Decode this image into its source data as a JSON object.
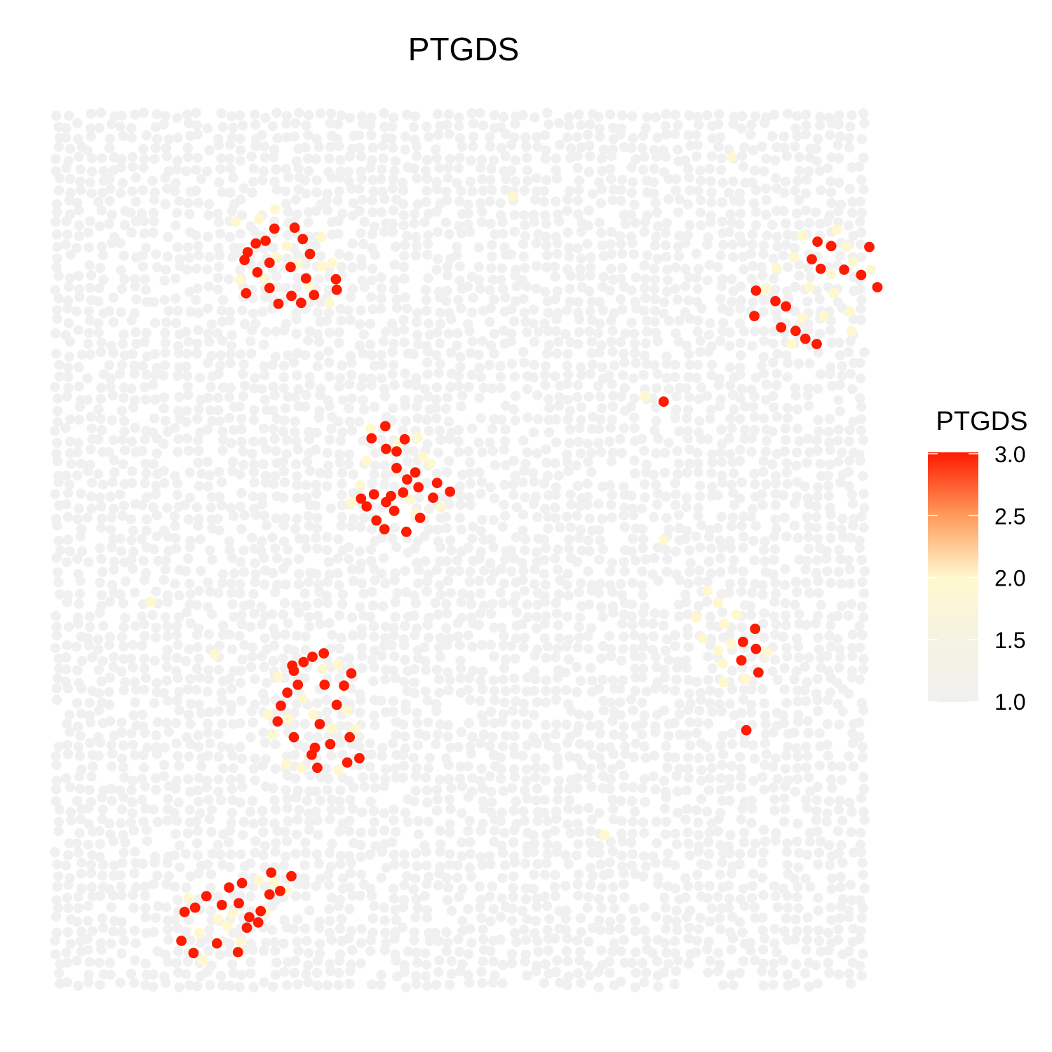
{
  "chart_data": {
    "type": "scatter",
    "title": "PTGDS",
    "xlabel": "",
    "ylabel": "",
    "axes_visible": false,
    "grid": false,
    "background_point_color": "#f0f0f0",
    "legend": {
      "title": "PTGDS",
      "position": "right",
      "type": "colorbar",
      "ticks": [
        "3.0",
        "2.5",
        "2.0",
        "1.5",
        "1.0"
      ],
      "range": [
        1.0,
        3.0
      ],
      "colors": [
        "#f0f0f0",
        "#fff8cf",
        "#ffefb0",
        "#ff9a5a",
        "#ff1a00"
      ]
    },
    "xlim": [
      0,
      100
    ],
    "ylim": [
      0,
      100
    ],
    "clusters": [
      {
        "highlighted": [
          {
            "x": 27.3,
            "y": 78.4,
            "v": 3
          },
          {
            "x": 28.9,
            "y": 79.3,
            "v": 3
          },
          {
            "x": 30.1,
            "y": 78.5,
            "v": 3
          },
          {
            "x": 31.7,
            "y": 79.4,
            "v": 3
          },
          {
            "x": 34.4,
            "y": 81.2,
            "v": 3
          },
          {
            "x": 30.7,
            "y": 81.3,
            "v": 3
          },
          {
            "x": 28.8,
            "y": 82.6,
            "v": 3
          },
          {
            "x": 34.5,
            "y": 80.0,
            "v": 3
          },
          {
            "x": 31.2,
            "y": 84.1,
            "v": 3
          },
          {
            "x": 24.7,
            "y": 82.0,
            "v": 3
          },
          {
            "x": 23.1,
            "y": 83.4,
            "v": 3
          },
          {
            "x": 26.2,
            "y": 83.1,
            "v": 3
          },
          {
            "x": 30.3,
            "y": 85.8,
            "v": 3
          },
          {
            "x": 23.5,
            "y": 84.3,
            "v": 3
          },
          {
            "x": 24.5,
            "y": 85.3,
            "v": 3
          },
          {
            "x": 26.8,
            "y": 87.0,
            "v": 3
          },
          {
            "x": 29.3,
            "y": 87.1,
            "v": 3
          },
          {
            "x": 25.7,
            "y": 85.6,
            "v": 3
          },
          {
            "x": 23.3,
            "y": 79.6,
            "v": 3
          },
          {
            "x": 26.2,
            "y": 80.2,
            "v": 3
          },
          {
            "x": 28.3,
            "y": 85.0,
            "v": 2
          },
          {
            "x": 27.0,
            "y": 83.7,
            "v": 2
          },
          {
            "x": 25.6,
            "y": 81.2,
            "v": 2
          },
          {
            "x": 29.7,
            "y": 83.0,
            "v": 2
          },
          {
            "x": 32.7,
            "y": 82.7,
            "v": 2
          },
          {
            "x": 32.6,
            "y": 86.0,
            "v": 2
          },
          {
            "x": 24.9,
            "y": 88.1,
            "v": 2
          },
          {
            "x": 33.6,
            "y": 78.5,
            "v": 2
          },
          {
            "x": 22.5,
            "y": 81.1,
            "v": 2
          },
          {
            "x": 33.9,
            "y": 83.1,
            "v": 2
          },
          {
            "x": 31.1,
            "y": 80.5,
            "v": 2
          },
          {
            "x": 22.0,
            "y": 87.8,
            "v": 2
          }
        ]
      },
      {
        "highlighted": [
          {
            "x": 43.1,
            "y": 52.3,
            "v": 3
          },
          {
            "x": 44.8,
            "y": 53.9,
            "v": 3
          },
          {
            "x": 41.6,
            "y": 54.7,
            "v": 3
          },
          {
            "x": 40.6,
            "y": 55.7,
            "v": 3
          },
          {
            "x": 41.2,
            "y": 56.4,
            "v": 3
          },
          {
            "x": 42.7,
            "y": 56.8,
            "v": 3
          },
          {
            "x": 39.4,
            "y": 53.6,
            "v": 3
          },
          {
            "x": 38.2,
            "y": 55.2,
            "v": 3
          },
          {
            "x": 46.4,
            "y": 56.2,
            "v": 3
          },
          {
            "x": 48.5,
            "y": 56.9,
            "v": 3
          },
          {
            "x": 46.9,
            "y": 57.9,
            "v": 3
          },
          {
            "x": 44.2,
            "y": 59.1,
            "v": 3
          },
          {
            "x": 41.9,
            "y": 61.5,
            "v": 3
          },
          {
            "x": 40.6,
            "y": 61.8,
            "v": 3
          },
          {
            "x": 38.8,
            "y": 63.0,
            "v": 3
          },
          {
            "x": 42.9,
            "y": 62.9,
            "v": 3
          },
          {
            "x": 40.5,
            "y": 64.4,
            "v": 3
          },
          {
            "x": 41.9,
            "y": 59.6,
            "v": 3
          },
          {
            "x": 43.2,
            "y": 58.3,
            "v": 3
          },
          {
            "x": 44.6,
            "y": 57.4,
            "v": 3
          },
          {
            "x": 39.1,
            "y": 56.6,
            "v": 3
          },
          {
            "x": 40.4,
            "y": 52.6,
            "v": 3
          },
          {
            "x": 37.5,
            "y": 56.1,
            "v": 3
          },
          {
            "x": 44.3,
            "y": 54.4,
            "v": 2
          },
          {
            "x": 43.5,
            "y": 56.0,
            "v": 2
          },
          {
            "x": 45.2,
            "y": 60.9,
            "v": 2
          },
          {
            "x": 37.4,
            "y": 57.6,
            "v": 2
          },
          {
            "x": 36.3,
            "y": 55.6,
            "v": 2
          },
          {
            "x": 38.2,
            "y": 60.4,
            "v": 2
          },
          {
            "x": 42.1,
            "y": 62.5,
            "v": 2
          },
          {
            "x": 44.5,
            "y": 63.1,
            "v": 2
          },
          {
            "x": 46.1,
            "y": 60.1,
            "v": 2
          },
          {
            "x": 47.4,
            "y": 55.1,
            "v": 2
          },
          {
            "x": 38.7,
            "y": 64.1,
            "v": 2
          }
        ]
      },
      {
        "highlighted": [
          {
            "x": 32.9,
            "y": 38.4,
            "v": 3
          },
          {
            "x": 31.5,
            "y": 38.0,
            "v": 3
          },
          {
            "x": 30.4,
            "y": 37.4,
            "v": 3
          },
          {
            "x": 29.2,
            "y": 36.4,
            "v": 3
          },
          {
            "x": 28.4,
            "y": 33.9,
            "v": 3
          },
          {
            "x": 29.7,
            "y": 34.8,
            "v": 3
          },
          {
            "x": 27.6,
            "y": 32.4,
            "v": 3
          },
          {
            "x": 27.2,
            "y": 30.6,
            "v": 3
          },
          {
            "x": 29.2,
            "y": 28.8,
            "v": 3
          },
          {
            "x": 31.4,
            "y": 26.8,
            "v": 3
          },
          {
            "x": 32.1,
            "y": 25.3,
            "v": 3
          },
          {
            "x": 33.7,
            "y": 28.0,
            "v": 3
          },
          {
            "x": 35.8,
            "y": 25.9,
            "v": 3
          },
          {
            "x": 37.3,
            "y": 26.4,
            "v": 3
          },
          {
            "x": 36.1,
            "y": 28.8,
            "v": 3
          },
          {
            "x": 34.5,
            "y": 32.5,
            "v": 3
          },
          {
            "x": 35.4,
            "y": 34.7,
            "v": 3
          },
          {
            "x": 36.3,
            "y": 36.1,
            "v": 3
          },
          {
            "x": 33.0,
            "y": 34.8,
            "v": 3
          },
          {
            "x": 32.4,
            "y": 30.3,
            "v": 3
          },
          {
            "x": 31.8,
            "y": 27.6,
            "v": 3
          },
          {
            "x": 29.0,
            "y": 37.0,
            "v": 3
          },
          {
            "x": 28.5,
            "y": 30.9,
            "v": 2
          },
          {
            "x": 26.0,
            "y": 31.4,
            "v": 2
          },
          {
            "x": 26.6,
            "y": 29.1,
            "v": 2
          },
          {
            "x": 30.3,
            "y": 33.2,
            "v": 2
          },
          {
            "x": 31.6,
            "y": 31.4,
            "v": 2
          },
          {
            "x": 33.9,
            "y": 29.8,
            "v": 2
          },
          {
            "x": 35.8,
            "y": 31.9,
            "v": 2
          },
          {
            "x": 36.8,
            "y": 29.7,
            "v": 2
          },
          {
            "x": 28.3,
            "y": 25.7,
            "v": 2
          },
          {
            "x": 30.1,
            "y": 25.3,
            "v": 2
          },
          {
            "x": 34.7,
            "y": 25.0,
            "v": 2
          },
          {
            "x": 27.2,
            "y": 35.7,
            "v": 2
          },
          {
            "x": 32.7,
            "y": 36.6,
            "v": 2
          },
          {
            "x": 34.6,
            "y": 37.1,
            "v": 2
          }
        ]
      },
      {
        "highlighted": [
          {
            "x": 22.8,
            "y": 12.1,
            "v": 3
          },
          {
            "x": 21.2,
            "y": 11.6,
            "v": 3
          },
          {
            "x": 20.3,
            "y": 9.6,
            "v": 3
          },
          {
            "x": 22.4,
            "y": 9.8,
            "v": 3
          },
          {
            "x": 25.1,
            "y": 8.9,
            "v": 3
          },
          {
            "x": 26.2,
            "y": 10.8,
            "v": 3
          },
          {
            "x": 27.5,
            "y": 11.2,
            "v": 3
          },
          {
            "x": 28.9,
            "y": 12.9,
            "v": 3
          },
          {
            "x": 26.4,
            "y": 13.3,
            "v": 3
          },
          {
            "x": 23.4,
            "y": 7.0,
            "v": 3
          },
          {
            "x": 19.7,
            "y": 5.2,
            "v": 3
          },
          {
            "x": 16.8,
            "y": 4.1,
            "v": 3
          },
          {
            "x": 15.3,
            "y": 5.5,
            "v": 3
          },
          {
            "x": 15.7,
            "y": 8.8,
            "v": 3
          },
          {
            "x": 17.0,
            "y": 9.3,
            "v": 3
          },
          {
            "x": 18.4,
            "y": 10.6,
            "v": 3
          },
          {
            "x": 22.3,
            "y": 4.2,
            "v": 3
          },
          {
            "x": 24.8,
            "y": 7.6,
            "v": 3
          },
          {
            "x": 23.7,
            "y": 8.2,
            "v": 3
          },
          {
            "x": 17.5,
            "y": 6.4,
            "v": 2
          },
          {
            "x": 19.8,
            "y": 8.0,
            "v": 2
          },
          {
            "x": 21.6,
            "y": 8.6,
            "v": 2
          },
          {
            "x": 24.9,
            "y": 12.4,
            "v": 2
          },
          {
            "x": 28.2,
            "y": 11.3,
            "v": 2
          },
          {
            "x": 25.7,
            "y": 8.8,
            "v": 2
          },
          {
            "x": 18.0,
            "y": 3.3,
            "v": 2
          },
          {
            "x": 16.2,
            "y": 10.4,
            "v": 2
          },
          {
            "x": 21.0,
            "y": 7.2,
            "v": 2
          },
          {
            "x": 22.6,
            "y": 5.4,
            "v": 2
          },
          {
            "x": 26.7,
            "y": 12.2,
            "v": 2
          }
        ]
      },
      {
        "highlighted": [
          {
            "x": 95.6,
            "y": 85.0,
            "v": 3
          },
          {
            "x": 93.9,
            "y": 85.5,
            "v": 3
          },
          {
            "x": 93.2,
            "y": 83.5,
            "v": 3
          },
          {
            "x": 94.3,
            "y": 82.4,
            "v": 3
          },
          {
            "x": 97.2,
            "y": 82.3,
            "v": 3
          },
          {
            "x": 101.3,
            "y": 80.3,
            "v": 3
          },
          {
            "x": 99.3,
            "y": 81.7,
            "v": 3
          },
          {
            "x": 100.3,
            "y": 84.9,
            "v": 3
          },
          {
            "x": 86.3,
            "y": 79.9,
            "v": 3
          },
          {
            "x": 88.7,
            "y": 78.7,
            "v": 3
          },
          {
            "x": 90.0,
            "y": 78.1,
            "v": 3
          },
          {
            "x": 86.1,
            "y": 77.0,
            "v": 3
          },
          {
            "x": 89.4,
            "y": 75.7,
            "v": 3
          },
          {
            "x": 91.2,
            "y": 75.3,
            "v": 3
          },
          {
            "x": 92.4,
            "y": 74.4,
            "v": 3
          },
          {
            "x": 93.8,
            "y": 73.8,
            "v": 3
          },
          {
            "x": 92.1,
            "y": 86.2,
            "v": 2
          },
          {
            "x": 96.3,
            "y": 86.9,
            "v": 2
          },
          {
            "x": 98.3,
            "y": 83.2,
            "v": 2
          },
          {
            "x": 95.6,
            "y": 81.8,
            "v": 2
          },
          {
            "x": 91.0,
            "y": 83.7,
            "v": 2
          },
          {
            "x": 88.8,
            "y": 82.5,
            "v": 2
          },
          {
            "x": 87.6,
            "y": 80.1,
            "v": 2
          },
          {
            "x": 92.9,
            "y": 80.3,
            "v": 2
          },
          {
            "x": 95.9,
            "y": 79.6,
            "v": 2
          },
          {
            "x": 97.9,
            "y": 77.5,
            "v": 2
          },
          {
            "x": 94.7,
            "y": 77.0,
            "v": 2
          },
          {
            "x": 92.0,
            "y": 76.8,
            "v": 2
          },
          {
            "x": 90.7,
            "y": 73.8,
            "v": 2
          },
          {
            "x": 98.1,
            "y": 75.3,
            "v": 2
          },
          {
            "x": 100.5,
            "y": 82.3,
            "v": 2
          },
          {
            "x": 97.5,
            "y": 84.9,
            "v": 2
          }
        ]
      },
      {
        "highlighted": [
          {
            "x": 86.2,
            "y": 41.2,
            "v": 3
          },
          {
            "x": 84.7,
            "y": 39.7,
            "v": 3
          },
          {
            "x": 86.3,
            "y": 38.9,
            "v": 3
          },
          {
            "x": 86.6,
            "y": 36.2,
            "v": 3
          },
          {
            "x": 84.5,
            "y": 37.6,
            "v": 3
          },
          {
            "x": 85.1,
            "y": 29.6,
            "v": 3
          },
          {
            "x": 74.9,
            "y": 67.2,
            "v": 3
          },
          {
            "x": 80.3,
            "y": 45.5,
            "v": 2
          },
          {
            "x": 81.6,
            "y": 44.2,
            "v": 2
          },
          {
            "x": 78.9,
            "y": 42.5,
            "v": 2
          },
          {
            "x": 82.4,
            "y": 41.8,
            "v": 2
          },
          {
            "x": 83.2,
            "y": 39.5,
            "v": 2
          },
          {
            "x": 81.6,
            "y": 38.7,
            "v": 2
          },
          {
            "x": 82.2,
            "y": 37.2,
            "v": 2
          },
          {
            "x": 87.7,
            "y": 38.5,
            "v": 2
          },
          {
            "x": 85.0,
            "y": 35.5,
            "v": 2
          },
          {
            "x": 79.7,
            "y": 40.1,
            "v": 2
          },
          {
            "x": 83.9,
            "y": 42.8,
            "v": 2
          },
          {
            "x": 82.3,
            "y": 35.1,
            "v": 2
          },
          {
            "x": 72.6,
            "y": 67.8,
            "v": 2
          },
          {
            "x": 74.9,
            "y": 51.4,
            "v": 2
          },
          {
            "x": 56.3,
            "y": 90.7,
            "v": 2
          },
          {
            "x": 83.3,
            "y": 95.2,
            "v": 2
          },
          {
            "x": 11.5,
            "y": 44.3,
            "v": 2
          },
          {
            "x": 19.4,
            "y": 38.3,
            "v": 2
          },
          {
            "x": 67.6,
            "y": 17.6,
            "v": 2
          },
          {
            "x": 26.9,
            "y": 89.2,
            "v": 2
          }
        ]
      }
    ]
  }
}
